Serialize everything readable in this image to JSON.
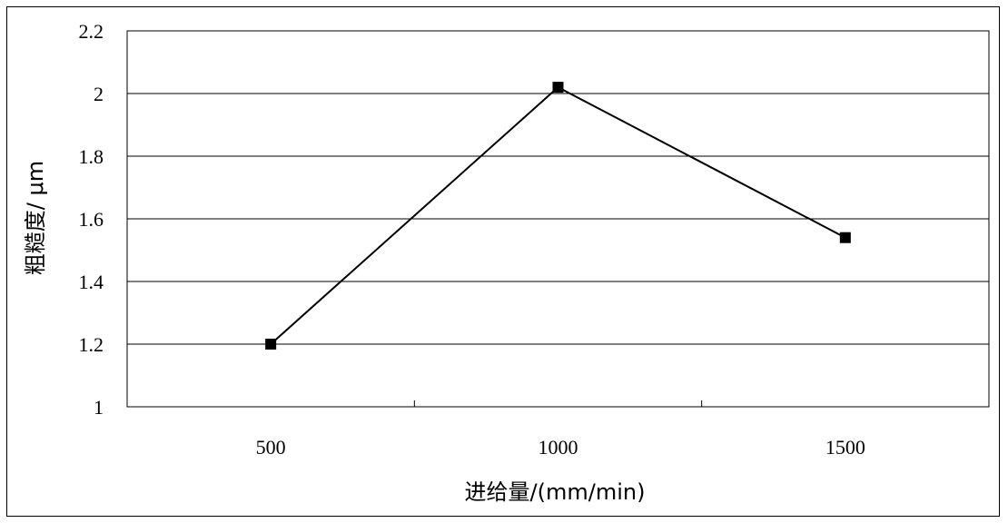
{
  "chart_data": {
    "type": "line",
    "categories": [
      "500",
      "1000",
      "1500"
    ],
    "series": [
      {
        "values": [
          1.2,
          2.02,
          1.54
        ],
        "color": "#000000",
        "marker": "square"
      }
    ],
    "ylim": [
      1,
      2.2
    ],
    "yticks": [
      "1",
      "1.2",
      "1.4",
      "1.6",
      "1.8",
      "2",
      "2.2"
    ],
    "xlabel": "进给量/(mm/min)",
    "ylabel": "粗糙度/ μm",
    "grid": "horizontal",
    "legend": "none"
  }
}
